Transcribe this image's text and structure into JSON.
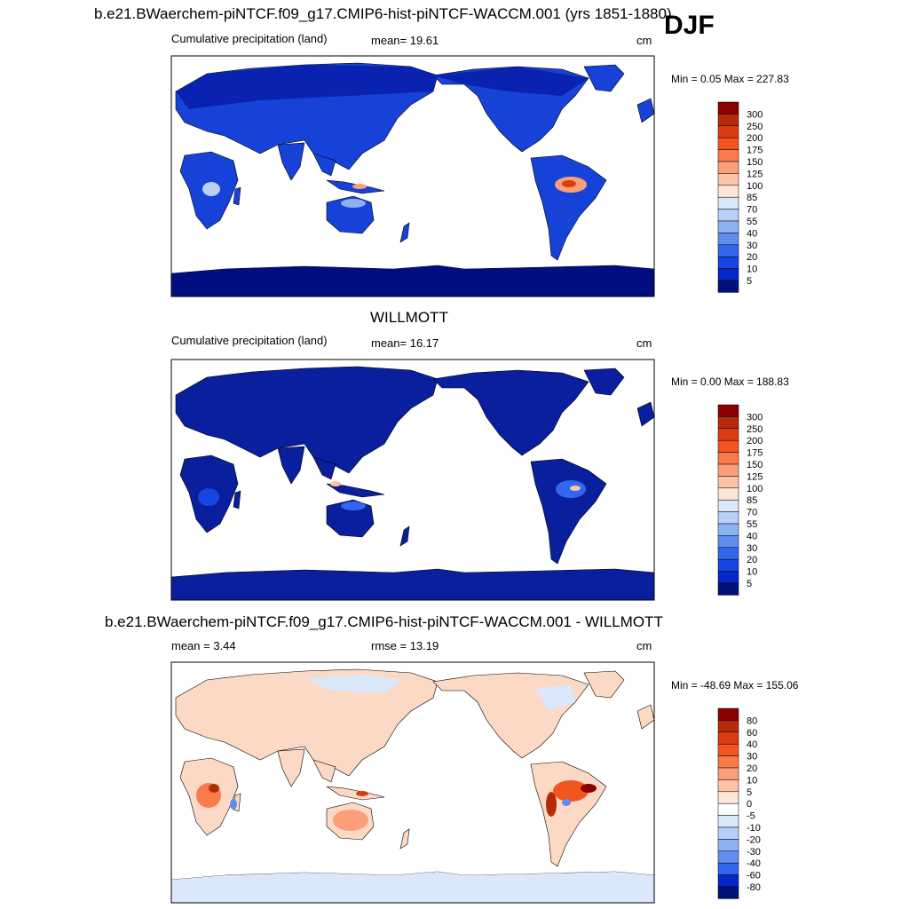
{
  "season": "DJF",
  "panels": [
    {
      "title": "b.e21.BWaerchem-piNTCF.f09_g17.CMIP6-hist-piNTCF-WACCM.001 (yrs 1851-1880)",
      "left_label": "Cumulative precipitation (land)",
      "mid_label": "mean=  19.61",
      "units": "cm",
      "minmax": "Min =   0.05 Max = 227.83",
      "colorbar": {
        "levels": [
          "300",
          "250",
          "200",
          "175",
          "150",
          "125",
          "100",
          "85",
          "70",
          "55",
          "40",
          "30",
          "20",
          "10",
          "5"
        ],
        "colors": [
          "#8b0000",
          "#b52a0a",
          "#d93d10",
          "#f2551e",
          "#f97a4a",
          "#fb9f78",
          "#fcc3a6",
          "#fde6d8",
          "#dbe8fb",
          "#b8d0f8",
          "#8db2f4",
          "#5f8df0",
          "#3366ee",
          "#1745e0",
          "#0526c8",
          "#00127a"
        ]
      }
    },
    {
      "title": "WILLMOTT",
      "left_label": "Cumulative precipitation (land)",
      "mid_label": "mean=  16.17",
      "units": "cm",
      "minmax": "Min =   0.00 Max = 188.83",
      "colorbar": {
        "levels": [
          "300",
          "250",
          "200",
          "175",
          "150",
          "125",
          "100",
          "85",
          "70",
          "55",
          "40",
          "30",
          "20",
          "10",
          "5"
        ],
        "colors": [
          "#8b0000",
          "#b52a0a",
          "#d93d10",
          "#f2551e",
          "#f97a4a",
          "#fb9f78",
          "#fcc3a6",
          "#fde6d8",
          "#dbe8fb",
          "#b8d0f8",
          "#8db2f4",
          "#5f8df0",
          "#3366ee",
          "#1745e0",
          "#0526c8",
          "#00127a"
        ]
      }
    },
    {
      "title": "b.e21.BWaerchem-piNTCF.f09_g17.CMIP6-hist-piNTCF-WACCM.001 - WILLMOTT",
      "left_label": "mean =   3.44",
      "mid_label": "rmse =  13.19",
      "units": "cm",
      "minmax": "Min = -48.69 Max = 155.06",
      "colorbar": {
        "levels": [
          "80",
          "60",
          "40",
          "30",
          "20",
          "10",
          "5",
          "0",
          "-5",
          "-10",
          "-20",
          "-30",
          "-40",
          "-60",
          "-80"
        ],
        "colors": [
          "#8b0000",
          "#b52a0a",
          "#d93d10",
          "#f2551e",
          "#f97a4a",
          "#fb9f78",
          "#fcc3a6",
          "#fde6d8",
          "#ffffff",
          "#dbe8fb",
          "#b8d0f8",
          "#8db2f4",
          "#5f8df0",
          "#3366ee",
          "#0526c8",
          "#00127a"
        ]
      }
    }
  ],
  "map_colors": {
    "panel1_land": "#1642d8",
    "panel1_wet": "#0a22b0",
    "panel2_land": "#0a1f9e",
    "panel3_land": "#fcd9c4",
    "panel3_wet": "#c02010",
    "antarctica_dry": "#000e80",
    "antarctica_diff": "#dbe8fb"
  }
}
